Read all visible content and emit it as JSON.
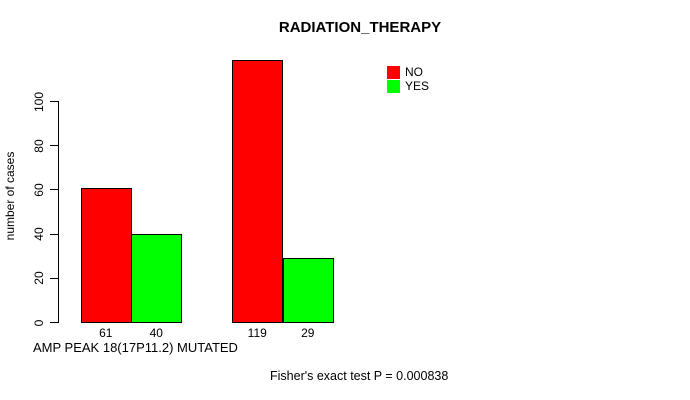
{
  "page": {
    "background": "#ffffff"
  },
  "chart_data": {
    "type": "bar",
    "title": "RADIATION_THERAPY",
    "ylabel": "number of cases",
    "xlabel": "AMP PEAK 18(17P11.2) MUTATED",
    "series": [
      {
        "name": "NO",
        "color": "#ff0000",
        "values": [
          61,
          119
        ]
      },
      {
        "name": "YES",
        "color": "#00ff00",
        "values": [
          40,
          29
        ]
      }
    ],
    "bar_value_labels": [
      "61",
      "40",
      "119",
      "29"
    ],
    "yticks": [
      0,
      20,
      40,
      60,
      80,
      100
    ],
    "ylim": [
      0,
      120
    ],
    "grid": false,
    "bar_border_color": "#000000",
    "legend": {
      "position": "upper-right",
      "entries": [
        {
          "label": "NO",
          "color": "#ff0000"
        },
        {
          "label": "YES",
          "color": "#00ff00"
        }
      ]
    },
    "annotation": "Fisher's exact test P = 0.000838"
  }
}
